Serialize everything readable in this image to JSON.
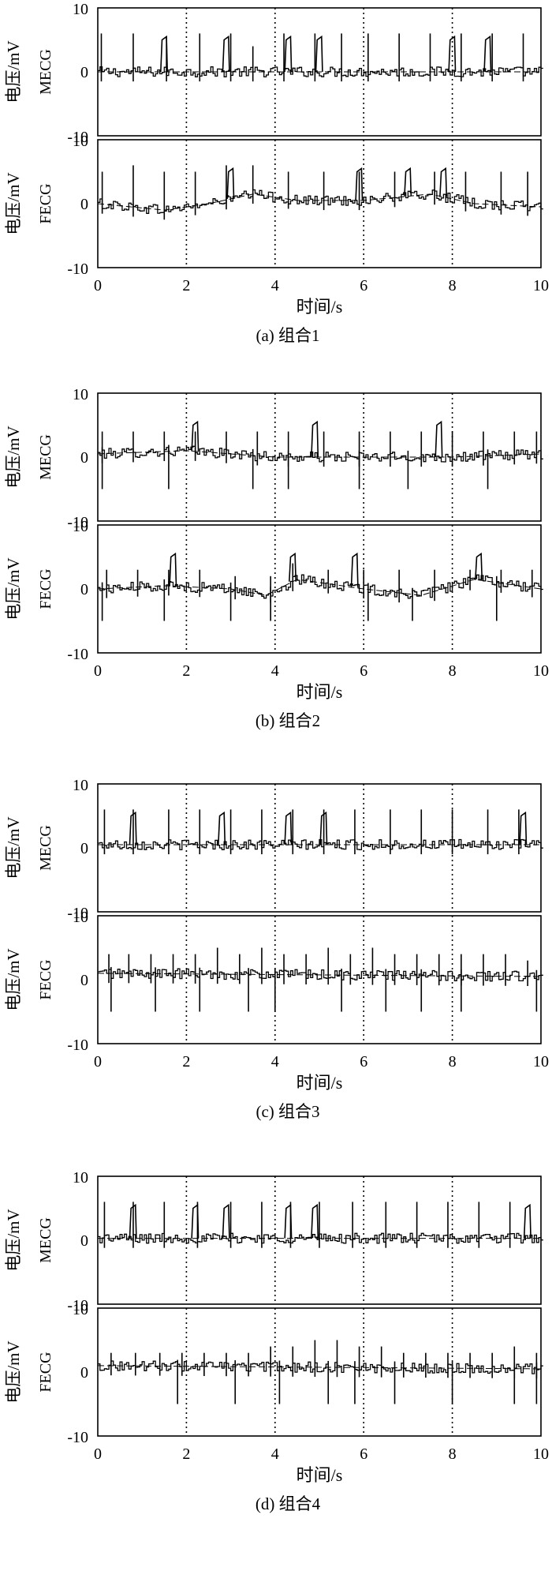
{
  "ylabel": "电压/mV",
  "xlabel": "时间/s",
  "panel_labels": [
    "MECG",
    "FECG"
  ],
  "y_ticks": [
    "10",
    "0",
    "-10"
  ],
  "x_ticks": [
    "0",
    "2",
    "4",
    "6",
    "8",
    "10"
  ],
  "colors": {
    "line": "#000000",
    "frame": "#000000",
    "background": "#ffffff"
  },
  "chart_data": [
    {
      "type": "line",
      "caption": "(a) 组合1",
      "xlim": [
        0,
        10
      ],
      "ylim": [
        -10,
        10
      ],
      "vgrid": [
        2,
        4,
        6,
        8
      ],
      "series": [
        {
          "name": "MECG",
          "peaks": [
            0.08,
            0.8,
            1.55,
            2.3,
            3.0,
            3.5,
            4.2,
            4.9,
            5.5,
            6.1,
            6.8,
            7.5,
            8.2,
            8.9,
            9.6
          ],
          "peak_heights": [
            6,
            6,
            5.5,
            6,
            6,
            4,
            6,
            6,
            6,
            6,
            6,
            6,
            6,
            6,
            6
          ],
          "broad": [
            1.5,
            2.9,
            4.3,
            5.0,
            8.0,
            8.8
          ],
          "trend": [
            [
              0,
              0
            ],
            [
              10,
              0
            ]
          ]
        },
        {
          "name": "FECG",
          "peaks": [
            0.1,
            0.8,
            1.5,
            2.2,
            2.9,
            3.5,
            4.3,
            5.1,
            5.9,
            6.7,
            7.6,
            8.3,
            9.1,
            9.7
          ],
          "peak_heights": [
            5,
            6,
            5,
            5,
            6,
            6,
            5,
            5,
            5,
            5,
            5,
            5,
            5,
            5
          ],
          "broad": [
            3.0,
            5.9,
            7.0,
            7.8
          ],
          "trend": [
            [
              0,
              0
            ],
            [
              1.5,
              -1
            ],
            [
              2.5,
              0
            ],
            [
              3.5,
              1.5
            ],
            [
              4.5,
              0.5
            ],
            [
              6,
              0.5
            ],
            [
              7.5,
              1.5
            ],
            [
              8.5,
              0
            ],
            [
              10,
              -0.5
            ]
          ]
        }
      ]
    },
    {
      "type": "line",
      "caption": "(b) 组合2",
      "xlim": [
        0,
        10
      ],
      "ylim": [
        -10,
        10
      ],
      "vgrid": [
        2,
        4,
        6,
        8
      ],
      "series": [
        {
          "name": "MECG",
          "peaks": [
            0.1,
            0.8,
            1.5,
            2.2,
            2.9,
            3.6,
            4.3,
            5.1,
            5.9,
            6.6,
            7.3,
            8.0,
            8.7,
            9.4,
            9.9
          ],
          "peak_heights": [
            4,
            4,
            4,
            4,
            4,
            4,
            4,
            4,
            4,
            4,
            4,
            4,
            4,
            4,
            4
          ],
          "deep": [
            0.1,
            1.6,
            3.5,
            4.3,
            5.9,
            7.0,
            8.8
          ],
          "broad": [
            2.2,
            4.9,
            7.7
          ],
          "trend": [
            [
              0,
              0.5
            ],
            [
              2,
              1
            ],
            [
              4,
              0
            ],
            [
              6,
              0
            ],
            [
              8,
              0
            ],
            [
              10,
              0.5
            ]
          ]
        },
        {
          "name": "FECG",
          "peaks": [
            0.2,
            0.9,
            1.6,
            2.3,
            3.1,
            3.9,
            4.4,
            5.2,
            6.0,
            6.8,
            7.6,
            8.4,
            9.1,
            9.8
          ],
          "peak_heights": [
            3,
            3,
            3,
            3,
            2,
            2,
            4,
            3,
            3,
            3,
            3,
            3,
            3,
            3
          ],
          "deep": [
            0.1,
            1.5,
            3.0,
            3.9,
            6.1,
            7.1,
            9.0
          ],
          "broad": [
            1.7,
            4.4,
            5.8,
            8.6
          ],
          "trend": [
            [
              0,
              0
            ],
            [
              1.5,
              0.5
            ],
            [
              3,
              0
            ],
            [
              3.8,
              -1
            ],
            [
              4.5,
              1.5
            ],
            [
              6,
              0
            ],
            [
              7.3,
              -1
            ],
            [
              8.5,
              1.5
            ],
            [
              10,
              0
            ]
          ]
        }
      ]
    },
    {
      "type": "line",
      "caption": "(c) 组合3",
      "xlim": [
        0,
        10
      ],
      "ylim": [
        -10,
        10
      ],
      "vgrid": [
        2,
        4,
        6,
        8
      ],
      "series": [
        {
          "name": "MECG",
          "peaks": [
            0.15,
            0.8,
            1.6,
            2.3,
            3.0,
            3.7,
            4.4,
            5.1,
            5.8,
            6.6,
            7.3,
            8.0,
            8.8,
            9.5
          ],
          "peak_heights": [
            6,
            6,
            6,
            6,
            6,
            6,
            6,
            6,
            6,
            6,
            6,
            6,
            6,
            6
          ],
          "broad": [
            0.8,
            2.8,
            4.3,
            5.1,
            9.6
          ],
          "trend": [
            [
              0,
              0.5
            ],
            [
              10,
              0.5
            ]
          ]
        },
        {
          "name": "FECG",
          "peaks": [
            0.25,
            0.7,
            1.2,
            1.7,
            2.2,
            2.7,
            3.2,
            3.7,
            4.2,
            4.7,
            5.2,
            5.7,
            6.2,
            6.7,
            7.2,
            7.7,
            8.2,
            8.7,
            9.2,
            9.7
          ],
          "peak_heights": [
            4,
            4,
            4,
            4,
            4,
            5,
            4,
            5,
            4,
            4,
            5,
            4,
            5,
            4,
            4,
            4,
            4,
            4,
            4,
            3
          ],
          "deep": [
            0.3,
            1.3,
            2.3,
            3.4,
            4.0,
            5.5,
            6.5,
            7.3,
            8.2,
            9.9
          ],
          "trend": [
            [
              0,
              1
            ],
            [
              10,
              0.5
            ]
          ]
        }
      ]
    },
    {
      "type": "line",
      "caption": "(d) 组合4",
      "xlim": [
        0,
        10
      ],
      "ylim": [
        -10,
        10
      ],
      "vgrid": [
        2,
        4,
        6,
        8
      ],
      "series": [
        {
          "name": "MECG",
          "peaks": [
            0.15,
            0.8,
            1.5,
            2.25,
            3.0,
            3.7,
            4.35,
            5.0,
            5.75,
            6.5,
            7.2,
            7.9,
            8.6,
            9.3
          ],
          "peak_heights": [
            6,
            6,
            6,
            6,
            6,
            6,
            6,
            6,
            6,
            6,
            6,
            6,
            6,
            6
          ],
          "broad": [
            0.8,
            2.2,
            2.9,
            4.3,
            4.9,
            9.7
          ],
          "trend": [
            [
              0,
              0.3
            ],
            [
              10,
              0.3
            ]
          ]
        },
        {
          "name": "FECG",
          "peaks": [
            0.3,
            0.85,
            1.4,
            1.9,
            2.4,
            2.9,
            3.4,
            3.9,
            4.4,
            4.9,
            5.4,
            5.9,
            6.4,
            6.9,
            7.4,
            7.9,
            8.4,
            8.9,
            9.4,
            9.9
          ],
          "peak_heights": [
            3,
            3,
            3,
            3,
            3,
            3,
            3,
            4,
            4,
            5,
            5,
            4,
            4,
            3,
            3,
            3,
            3,
            3,
            4,
            3
          ],
          "deep": [
            1.8,
            3.1,
            4.1,
            5.2,
            5.8,
            6.7,
            8.0,
            9.4,
            9.9
          ],
          "trend": [
            [
              0,
              1
            ],
            [
              10,
              0.5
            ]
          ]
        }
      ]
    }
  ]
}
